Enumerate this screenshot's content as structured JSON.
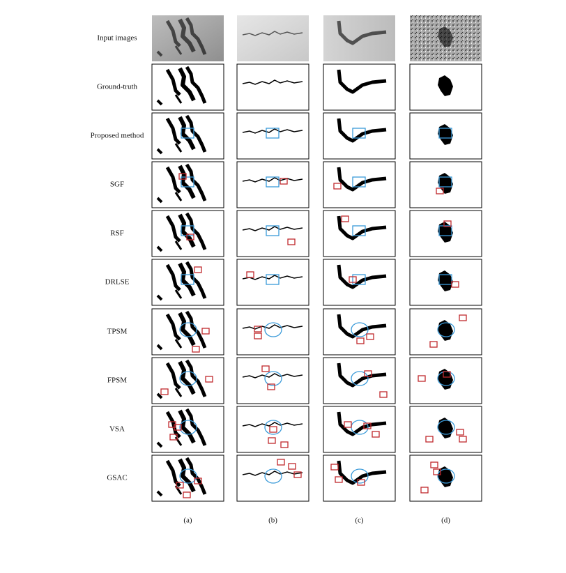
{
  "rows": [
    "Input images",
    "Ground-truth",
    "Proposed method",
    "SGF",
    "RSF",
    "DRLSE",
    "TPSM",
    "FPSM",
    "VSA",
    "GSAC"
  ],
  "columns": [
    "(a)",
    "(b)",
    "(c)",
    "(d)"
  ]
}
